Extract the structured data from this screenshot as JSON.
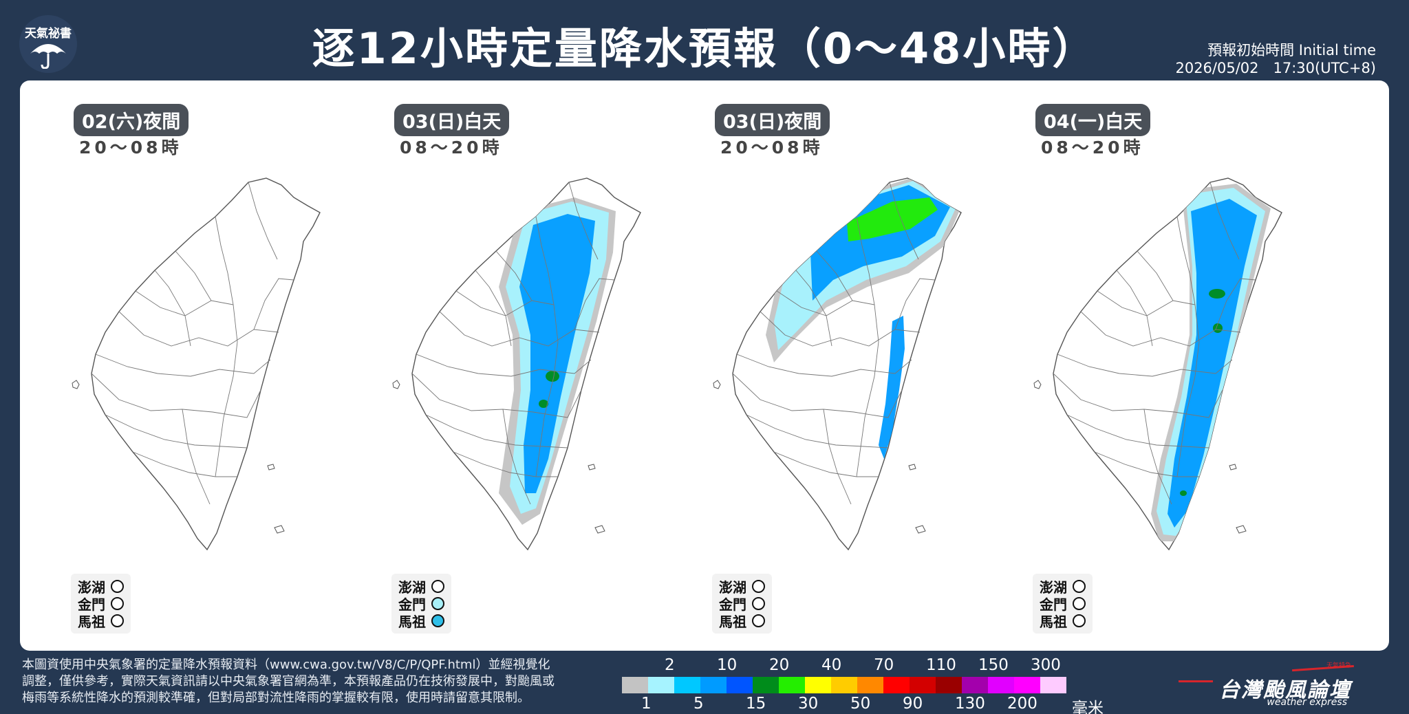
{
  "header": {
    "logo_text": "天氣祕書",
    "logo_icon": "umbrella-icon",
    "title": "逐12小時定量降水預報（0～48小時）",
    "init_label": "預報初始時間 Initial time",
    "init_value": "2026/05/02　17:30(UTC+8)"
  },
  "panels": [
    {
      "date": "02(六)夜間",
      "hours": "20～08時",
      "rain": [],
      "islands": [
        {
          "name": "澎湖",
          "color": "#ffffff"
        },
        {
          "name": "金門",
          "color": "#ffffff"
        },
        {
          "name": "馬祖",
          "color": "#ffffff"
        }
      ]
    },
    {
      "date": "03(日)白天",
      "hours": "08～20時",
      "rain": [
        "gray",
        "lightcyan",
        "blue",
        "green-dots"
      ],
      "islands": [
        {
          "name": "澎湖",
          "color": "#ffffff"
        },
        {
          "name": "金門",
          "color": "#a8f0f8"
        },
        {
          "name": "馬祖",
          "color": "#2fbfe8"
        }
      ]
    },
    {
      "date": "03(日)夜間",
      "hours": "20～08時",
      "rain": [
        "gray-north",
        "cyan-north",
        "blue-north",
        "green-north",
        "east-strip"
      ],
      "islands": [
        {
          "name": "澎湖",
          "color": "#ffffff"
        },
        {
          "name": "金門",
          "color": "#ffffff"
        },
        {
          "name": "馬祖",
          "color": "#ffffff"
        }
      ]
    },
    {
      "date": "04(一)白天",
      "hours": "08～20時",
      "rain": [
        "gray-full",
        "cyan-full",
        "blue-full",
        "green-spots"
      ],
      "islands": [
        {
          "name": "澎湖",
          "color": "#ffffff"
        },
        {
          "name": "金門",
          "color": "#ffffff"
        },
        {
          "name": "馬祖",
          "color": "#ffffff"
        }
      ]
    }
  ],
  "footer": {
    "note_lines": [
      "本圖資使用中央氣象署的定量降水預報資料（www.cwa.gov.tw/V8/C/P/QPF.html）並經視覺化",
      "調整，僅供參考，實際天氣資訊請以中央氣象署官網為準，本預報產品仍在技術發展中，對颱風或",
      "梅雨等系統性降水的預測較準確，但對局部對流性降雨的掌握較有限，使用時請留意其限制。"
    ],
    "legend_top": [
      "2",
      "10",
      "20",
      "40",
      "70",
      "110",
      "150",
      "300"
    ],
    "legend_bottom": [
      "1",
      "5",
      "15",
      "30",
      "50",
      "90",
      "130",
      "200"
    ],
    "legend_unit": "毫米",
    "legend_colors": [
      "#c3c3c3",
      "#a6f3ff",
      "#00c8ff",
      "#009bff",
      "#0055ff",
      "#008c1b",
      "#24ee00",
      "#ffff00",
      "#ffcc00",
      "#ff8800",
      "#ff0000",
      "#d30000",
      "#9a0000",
      "#a300ac",
      "#e100ff",
      "#ff00ff",
      "#fecbff"
    ],
    "brand_name": "台灣颱風論壇",
    "brand_sub": "weather express",
    "brand_tag": "天氣特急"
  }
}
